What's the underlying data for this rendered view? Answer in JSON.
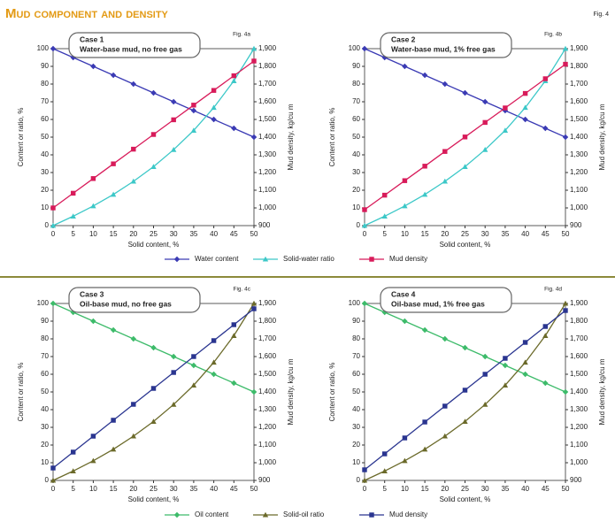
{
  "title": "Mud component and density",
  "fig": "Fig. 4",
  "chart_data": [
    {
      "type": "line",
      "fig": "Fig. 4a",
      "case": "Case 1",
      "subtitle": "Water-base mud, no free gas",
      "xlabel": "Solid content, %",
      "ylabel": "Content or ratio, %",
      "y2label": "Mud density, kg/cu m",
      "x": [
        0,
        5,
        10,
        15,
        20,
        25,
        30,
        35,
        40,
        45,
        50
      ],
      "xlim": [
        0,
        50
      ],
      "xticks": [
        0,
        5,
        10,
        15,
        20,
        25,
        30,
        35,
        40,
        45,
        50
      ],
      "ylim": [
        0,
        100
      ],
      "yticks": [
        0,
        10,
        20,
        30,
        40,
        50,
        60,
        70,
        80,
        90,
        100
      ],
      "y2lim": [
        900,
        1900
      ],
      "y2ticks": [
        900,
        {
          "value": 1000,
          "label": "1,000"
        },
        {
          "value": 1100,
          "label": "1,100"
        },
        {
          "value": 1200,
          "label": "1,200"
        },
        {
          "value": 1300,
          "label": "1,300"
        },
        {
          "value": 1400,
          "label": "1,400"
        },
        {
          "value": 1500,
          "label": "1,500"
        },
        {
          "value": 1600,
          "label": "1,600"
        },
        {
          "value": 1700,
          "label": "1,700"
        },
        {
          "value": 1800,
          "label": "1,800"
        },
        {
          "value": 1900,
          "label": "1,900"
        }
      ],
      "legend": "below",
      "series": [
        {
          "name": "Water content",
          "color": "#3a3ab4",
          "marker": "diamond",
          "values": [
            100,
            95,
            90,
            85,
            80,
            75,
            70,
            65,
            60,
            55,
            50
          ]
        },
        {
          "name": "Solid-water ratio",
          "color": "#3cc8c8",
          "marker": "triangle",
          "values": [
            0,
            5.3,
            11.1,
            17.6,
            25,
            33.3,
            42.9,
            53.8,
            66.7,
            81.8,
            100
          ]
        },
        {
          "name": "Mud density",
          "color": "#d81b5a",
          "marker": "square",
          "axis": "y2",
          "values": [
            1000,
            1083,
            1166,
            1249,
            1332,
            1415,
            1498,
            1581,
            1664,
            1747,
            1830
          ]
        }
      ]
    },
    {
      "type": "line",
      "fig": "Fig. 4b",
      "case": "Case 2",
      "subtitle": "Water-base mud, 1% free gas",
      "xlabel": "Solid content, %",
      "ylabel": "Content or ratio, %",
      "y2label": "Mud density, kg/cu m",
      "x": [
        0,
        5,
        10,
        15,
        20,
        25,
        30,
        35,
        40,
        45,
        50
      ],
      "xlim": [
        0,
        50
      ],
      "xticks": [
        0,
        5,
        10,
        15,
        20,
        25,
        30,
        35,
        40,
        45,
        50
      ],
      "ylim": [
        0,
        100
      ],
      "yticks": [
        0,
        10,
        20,
        30,
        40,
        50,
        60,
        70,
        80,
        90,
        100
      ],
      "y2lim": [
        900,
        1900
      ],
      "y2ticks": [
        900,
        {
          "value": 1000,
          "label": "1,000"
        },
        {
          "value": 1100,
          "label": "1,100"
        },
        {
          "value": 1200,
          "label": "1,200"
        },
        {
          "value": 1300,
          "label": "1,300"
        },
        {
          "value": 1400,
          "label": "1,400"
        },
        {
          "value": 1500,
          "label": "1,500"
        },
        {
          "value": 1600,
          "label": "1,600"
        },
        {
          "value": 1700,
          "label": "1,700"
        },
        {
          "value": 1800,
          "label": "1,800"
        },
        {
          "value": 1900,
          "label": "1,900"
        }
      ],
      "series": [
        {
          "name": "Water content",
          "color": "#3a3ab4",
          "marker": "diamond",
          "values": [
            100,
            95,
            90,
            85,
            80,
            75,
            70,
            65,
            60,
            55,
            50
          ]
        },
        {
          "name": "Solid-water ratio",
          "color": "#3cc8c8",
          "marker": "triangle",
          "values": [
            0,
            5.3,
            11.1,
            17.6,
            25,
            33.3,
            42.9,
            53.8,
            66.7,
            81.8,
            100
          ]
        },
        {
          "name": "Mud density",
          "color": "#d81b5a",
          "marker": "square",
          "axis": "y2",
          "values": [
            990,
            1072,
            1154,
            1236,
            1319,
            1401,
            1483,
            1565,
            1647,
            1730,
            1812
          ]
        }
      ]
    },
    {
      "type": "line",
      "fig": "Fig. 4c",
      "case": "Case 3",
      "subtitle": "Oil-base mud, no free gas",
      "xlabel": "Solid content, %",
      "ylabel": "Content or ratio, %",
      "y2label": "Mud density, kg/cu m",
      "x": [
        0,
        5,
        10,
        15,
        20,
        25,
        30,
        35,
        40,
        45,
        50
      ],
      "xlim": [
        0,
        50
      ],
      "xticks": [
        0,
        5,
        10,
        15,
        20,
        25,
        30,
        35,
        40,
        45,
        50
      ],
      "ylim": [
        0,
        100
      ],
      "yticks": [
        0,
        10,
        20,
        30,
        40,
        50,
        60,
        70,
        80,
        90,
        100
      ],
      "y2lim": [
        900,
        1900
      ],
      "y2ticks": [
        900,
        {
          "value": 1000,
          "label": "1,000"
        },
        {
          "value": 1100,
          "label": "1,100"
        },
        {
          "value": 1200,
          "label": "1,200"
        },
        {
          "value": 1300,
          "label": "1,300"
        },
        {
          "value": 1400,
          "label": "1,400"
        },
        {
          "value": 1500,
          "label": "1,500"
        },
        {
          "value": 1600,
          "label": "1,600"
        },
        {
          "value": 1700,
          "label": "1,700"
        },
        {
          "value": 1800,
          "label": "1,800"
        },
        {
          "value": 1900,
          "label": "1,900"
        }
      ],
      "legend": "below",
      "series": [
        {
          "name": "Oil content",
          "color": "#3dbb6a",
          "marker": "diamond",
          "values": [
            100,
            95,
            90,
            85,
            80,
            75,
            70,
            65,
            60,
            55,
            50
          ]
        },
        {
          "name": "Solid-oil ratio",
          "color": "#6b6a2a",
          "marker": "triangle",
          "values": [
            0,
            5.3,
            11.1,
            17.6,
            25,
            33.3,
            42.9,
            53.8,
            66.7,
            81.8,
            100
          ]
        },
        {
          "name": "Mud density",
          "color": "#2a3590",
          "marker": "square",
          "axis": "y2",
          "values": [
            970,
            1060,
            1150,
            1240,
            1330,
            1420,
            1510,
            1600,
            1690,
            1780,
            1870
          ]
        }
      ]
    },
    {
      "type": "line",
      "fig": "Fig. 4d",
      "case": "Case 4",
      "subtitle": "Oil-base mud, 1% free gas",
      "xlabel": "Solid content, %",
      "ylabel": "Content or ratio, %",
      "y2label": "Mud density, kg/cu m",
      "x": [
        0,
        5,
        10,
        15,
        20,
        25,
        30,
        35,
        40,
        45,
        50
      ],
      "xlim": [
        0,
        50
      ],
      "xticks": [
        0,
        5,
        10,
        15,
        20,
        25,
        30,
        35,
        40,
        45,
        50
      ],
      "ylim": [
        0,
        100
      ],
      "yticks": [
        0,
        10,
        20,
        30,
        40,
        50,
        60,
        70,
        80,
        90,
        100
      ],
      "y2lim": [
        900,
        1900
      ],
      "y2ticks": [
        900,
        {
          "value": 1000,
          "label": "1,000"
        },
        {
          "value": 1100,
          "label": "1,100"
        },
        {
          "value": 1200,
          "label": "1,200"
        },
        {
          "value": 1300,
          "label": "1,300"
        },
        {
          "value": 1400,
          "label": "1,400"
        },
        {
          "value": 1500,
          "label": "1,500"
        },
        {
          "value": 1600,
          "label": "1,600"
        },
        {
          "value": 1700,
          "label": "1,700"
        },
        {
          "value": 1800,
          "label": "1,800"
        },
        {
          "value": 1900,
          "label": "1,900"
        }
      ],
      "series": [
        {
          "name": "Oil content",
          "color": "#3dbb6a",
          "marker": "diamond",
          "values": [
            100,
            95,
            90,
            85,
            80,
            75,
            70,
            65,
            60,
            55,
            50
          ]
        },
        {
          "name": "Solid-oil ratio",
          "color": "#6b6a2a",
          "marker": "triangle",
          "values": [
            0,
            5.3,
            11.1,
            17.6,
            25,
            33.3,
            42.9,
            53.8,
            66.7,
            81.8,
            100
          ]
        },
        {
          "name": "Mud density",
          "color": "#2a3590",
          "marker": "square",
          "axis": "y2",
          "values": [
            960,
            1050,
            1140,
            1230,
            1320,
            1410,
            1500,
            1590,
            1680,
            1770,
            1860
          ]
        }
      ]
    }
  ]
}
